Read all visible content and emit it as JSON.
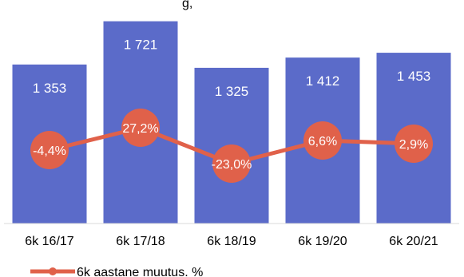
{
  "chart_data": {
    "type": "bar",
    "title_fragment": "g,",
    "categories": [
      "6k 16/17",
      "6k 17/18",
      "6k 18/19",
      "6k 19/20",
      "6k 20/21"
    ],
    "series": [
      {
        "type": "bar",
        "values": [
          1353,
          1721,
          1325,
          1412,
          1453
        ],
        "value_labels": [
          "1 353",
          "1 721",
          "1 325",
          "1 412",
          "1 453"
        ],
        "color": "#5b6bc9"
      },
      {
        "type": "line",
        "name": "6k  aastane muutus. %",
        "values": [
          -4.4,
          27.2,
          -23.0,
          6.6,
          2.9
        ],
        "value_labels": [
          "-4,4%",
          "27,2%",
          "-23,0%",
          "6,6%",
          "2,9%"
        ],
        "color": "#e0614a"
      }
    ],
    "bar_ylim": [
      0,
      1800
    ],
    "line_ylim": [
      -50,
      50
    ],
    "legend": {
      "position": "bottom-left",
      "entries": [
        "6k  aastane muutus. %"
      ]
    }
  }
}
